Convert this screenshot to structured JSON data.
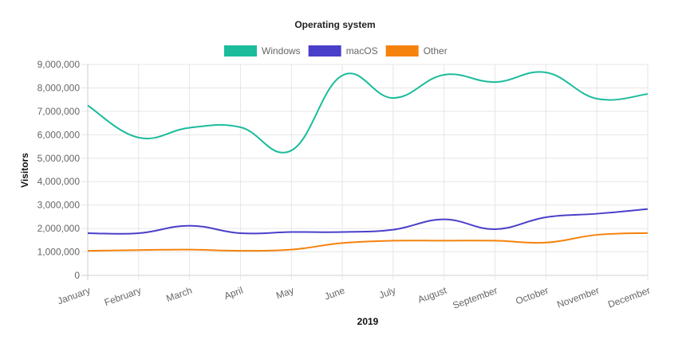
{
  "chart_data": {
    "type": "line",
    "title": "Operating system",
    "xlabel": "2019",
    "ylabel": "Visitors",
    "categories": [
      "January",
      "February",
      "March",
      "April",
      "May",
      "June",
      "July",
      "August",
      "September",
      "October",
      "November",
      "December"
    ],
    "ylim": [
      0,
      9000000
    ],
    "yticks": [
      "0",
      "1,000,000",
      "2,000,000",
      "3,000,000",
      "4,000,000",
      "5,000,000",
      "6,000,000",
      "7,000,000",
      "8,000,000",
      "9,000,000"
    ],
    "grid": true,
    "legend_placement": "top",
    "series": [
      {
        "name": "Windows",
        "color": "#1abc9c",
        "values": [
          7250000,
          5880000,
          6300000,
          6320000,
          5330000,
          8530000,
          7570000,
          8560000,
          8250000,
          8660000,
          7540000,
          7740000
        ]
      },
      {
        "name": "macOS",
        "color": "#4a3fc9",
        "values": [
          1800000,
          1800000,
          2120000,
          1800000,
          1850000,
          1850000,
          1950000,
          2390000,
          1970000,
          2480000,
          2630000,
          2830000
        ]
      },
      {
        "name": "Other",
        "color": "#f5820d",
        "values": [
          1050000,
          1080000,
          1100000,
          1050000,
          1100000,
          1380000,
          1480000,
          1480000,
          1480000,
          1400000,
          1730000,
          1810000
        ]
      }
    ]
  }
}
